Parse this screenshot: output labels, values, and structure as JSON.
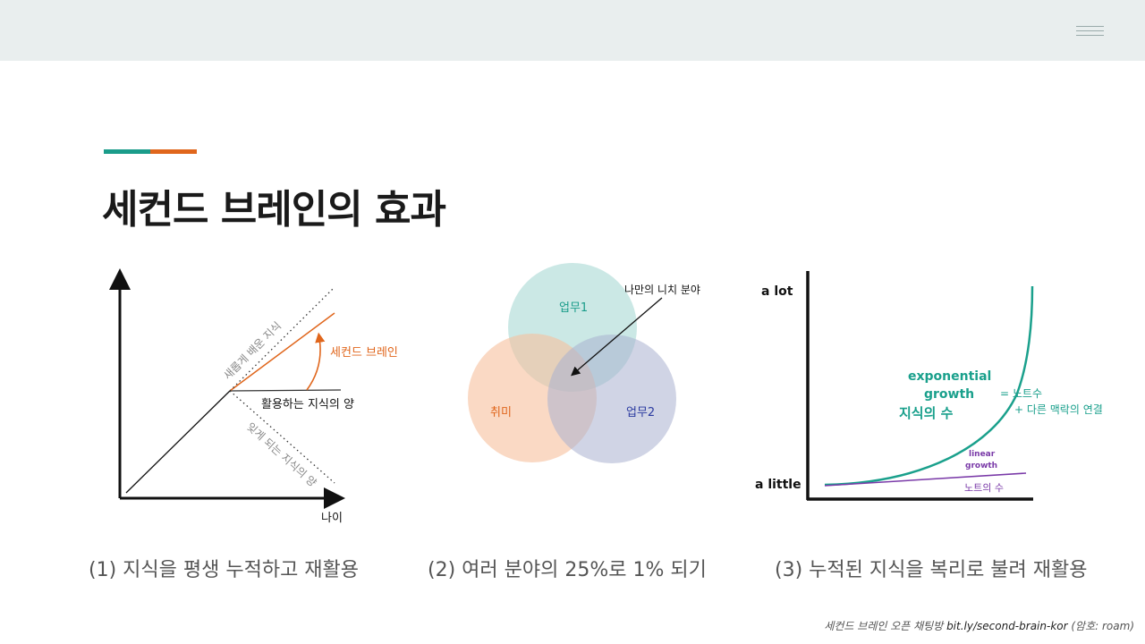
{
  "slide": {
    "title": "세컨드 브레인의 효과",
    "accent_colors": [
      "#1a9c8a",
      "#e0661c"
    ],
    "menu_icon": "hamburger-menu-icon"
  },
  "figure1": {
    "x_label": "나이",
    "new_knowledge": "새롭게 배운 지식",
    "used_knowledge": "활용하는 지식의 양",
    "second_brain": "세컨드 브레인",
    "forgotten": "잊게 되는 지식의 양",
    "caption": "(1) 지식을 평생 누적하고 재활용"
  },
  "figure2": {
    "circles": [
      {
        "label": "업무1",
        "color": "#a9d9d3",
        "text_color": "#1a9c8a"
      },
      {
        "label": "취미",
        "color": "#f6c09c",
        "text_color": "#e0661c"
      },
      {
        "label": "업무2",
        "color": "#a9b0cf",
        "text_color": "#2a3aa0"
      }
    ],
    "niche_label": "나만의 니치 분야",
    "caption": "(2) 여러 분야의 25%로 1% 되기"
  },
  "figure3": {
    "y_top": "a lot",
    "y_bottom": "a little",
    "exp_label_1": "exponential",
    "exp_label_2": "growth",
    "exp_label_ko": "지식의 수",
    "exp_note_1": "= 노트수",
    "exp_note_2": "+ 다른 맥락의 연결",
    "lin_label_1": "linear",
    "lin_label_2": "growth",
    "lin_label_ko": "노트의 수",
    "exp_color": "#1aa08c",
    "lin_color": "#7a3aa8",
    "caption": "(3) 누적된 지식을 복리로 불려 재활용"
  },
  "footer": {
    "prefix": "세컨드 브레인 오픈 채팅방",
    "link": "bit.ly/second-brain-kor",
    "suffix": "(암호: roam)"
  }
}
